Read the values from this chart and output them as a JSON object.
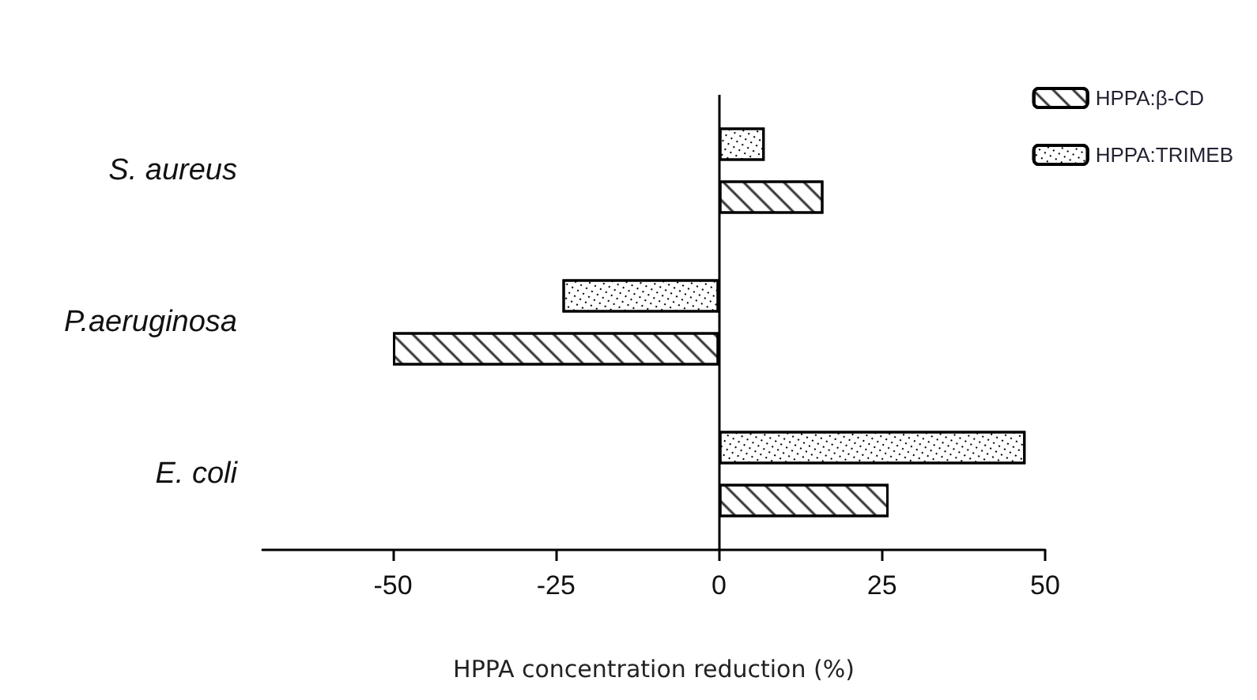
{
  "chart_data": {
    "type": "bar",
    "orientation": "horizontal",
    "xlabel": "HPPA concentration reduction (%)",
    "categories": [
      "S. aureus",
      "P.aeruginosa",
      "E. coli"
    ],
    "series": [
      {
        "name": "HPPA:β-CD",
        "color": "#000000",
        "values": [
          16,
          -50,
          26
        ]
      },
      {
        "name": "HPPA:TRIMEB",
        "color": "#000000",
        "values": [
          7,
          -24,
          47
        ]
      }
    ],
    "ref_lines": [
      {
        "axis": "x",
        "value": 0,
        "color": "#000000"
      }
    ],
    "xlim": [
      -70,
      50
    ],
    "xticks": [
      -50,
      -25,
      0,
      25,
      50
    ],
    "grid": false,
    "legend": "top right"
  }
}
